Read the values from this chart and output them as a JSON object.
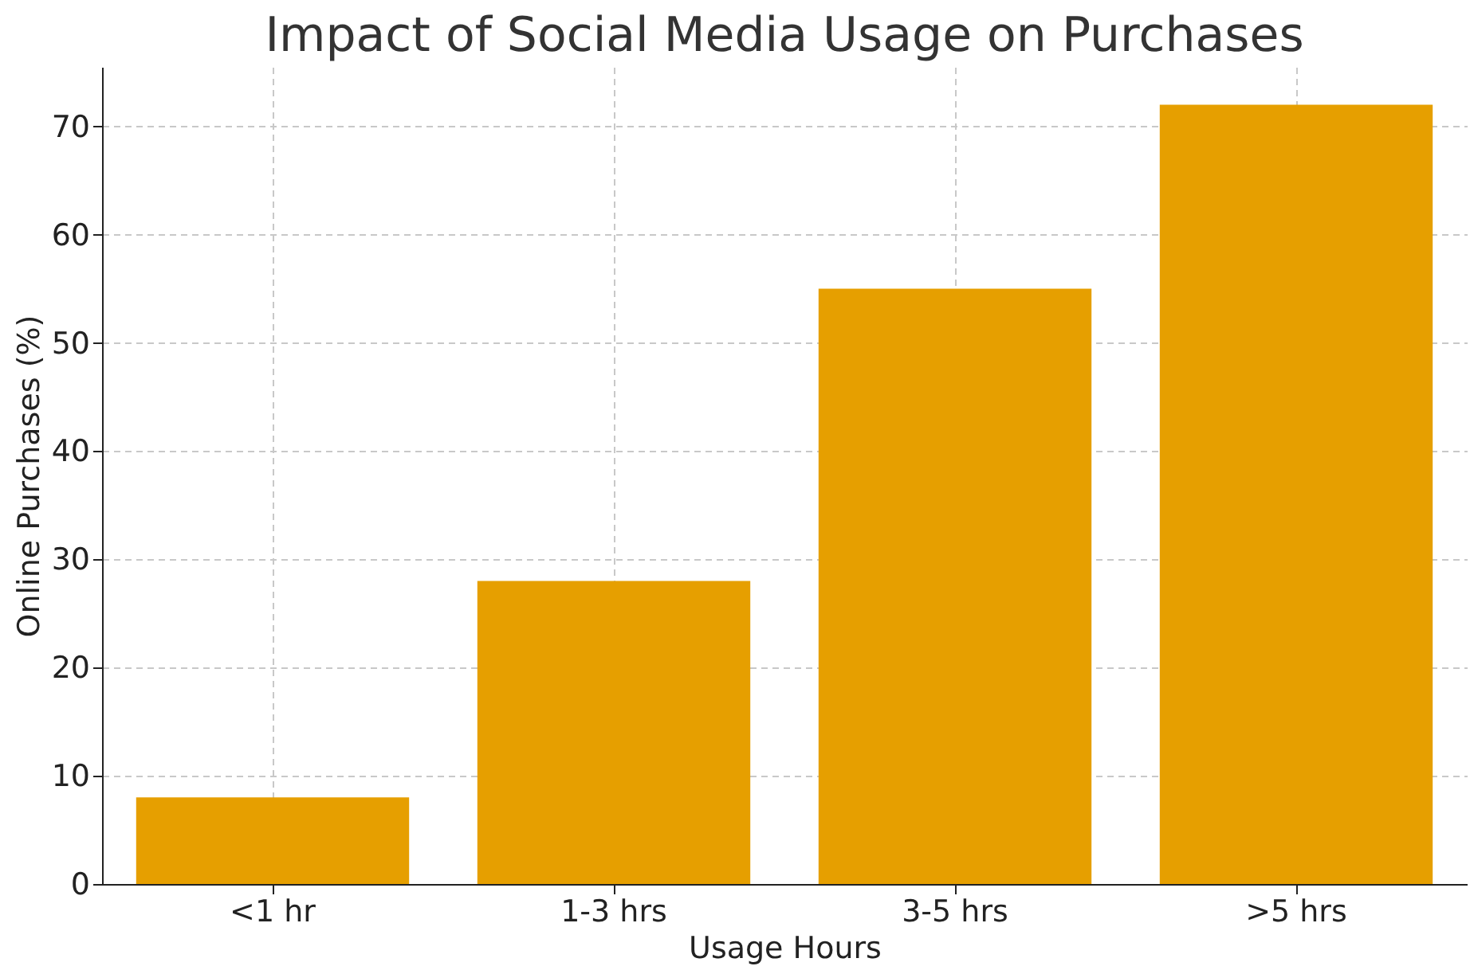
{
  "chart_data": {
    "type": "bar",
    "title": "Impact of Social Media Usage on Purchases",
    "xlabel": "Usage Hours",
    "ylabel": "Online Purchases (%)",
    "categories": [
      "<1 hr",
      "1-3 hrs",
      "3-5 hrs",
      ">5 hrs"
    ],
    "values": [
      8,
      28,
      55,
      72
    ],
    "color": "#e69f00",
    "ylim": [
      0,
      75.5
    ],
    "yticks": [
      0,
      10,
      20,
      30,
      40,
      50,
      60,
      70
    ],
    "grid": true
  }
}
